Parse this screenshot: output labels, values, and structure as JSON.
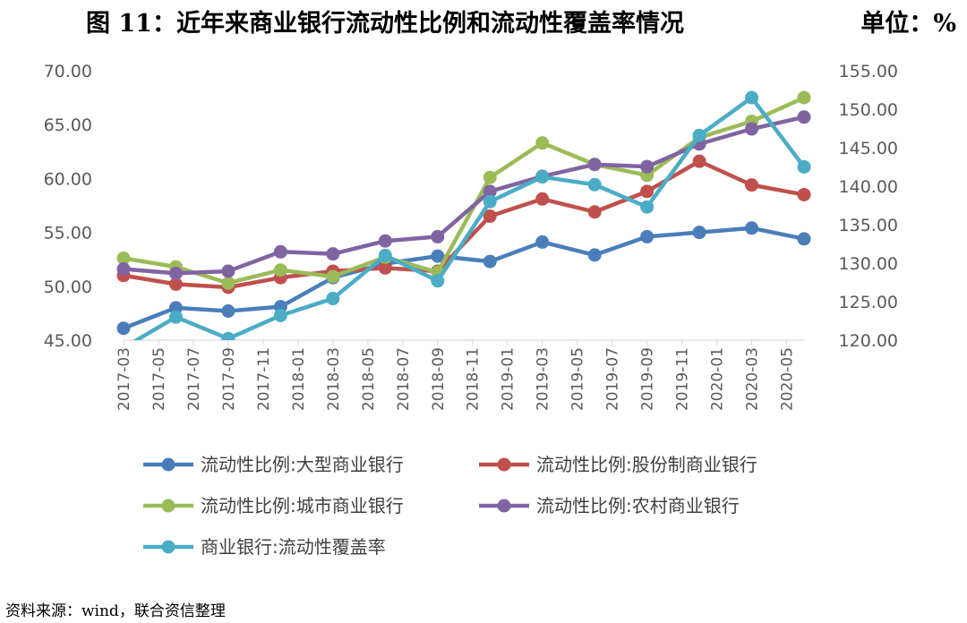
{
  "title": "图 11：近年来商业银行流动性比例和流动性覆盖率情况",
  "unit_label": "单位：%",
  "source": "资料来源：wind，联合资信整理",
  "colors": {
    "series": [
      "#4A7EBB",
      "#C0504D",
      "#9BBB59",
      "#8064A2",
      "#4BACC6"
    ],
    "axis": "#D9D9D9",
    "tick_text": "#595959"
  },
  "chart_data": {
    "type": "line",
    "title": "图 11：近年来商业银行流动性比例和流动性覆盖率情况",
    "x": [
      "2017-03",
      "2017-06",
      "2017-09",
      "2017-12",
      "2018-03",
      "2018-06",
      "2018-09",
      "2018-12",
      "2019-03",
      "2019-06",
      "2019-09",
      "2019-12",
      "2020-03",
      "2020-06"
    ],
    "x_tick_labels": [
      "2017-03",
      "2017-05",
      "2017-07",
      "2017-09",
      "2017-11",
      "2018-01",
      "2018-03",
      "2018-05",
      "2018-07",
      "2018-09",
      "2018-11",
      "2019-01",
      "2019-03",
      "2019-05",
      "2019-07",
      "2019-09",
      "2019-11",
      "2020-01",
      "2020-03",
      "2020-05"
    ],
    "x_tick_range": [
      "2017-03",
      "2020-06"
    ],
    "y_left": {
      "ylim": [
        45,
        70
      ],
      "ticks": [
        "45.00",
        "50.00",
        "55.00",
        "60.00",
        "65.00",
        "70.00"
      ]
    },
    "y_right": {
      "ylim": [
        120,
        155
      ],
      "ticks": [
        "120.00",
        "125.00",
        "130.00",
        "135.00",
        "140.00",
        "145.00",
        "150.00",
        "155.00"
      ]
    },
    "grid": false,
    "legend_position": "bottom",
    "series": [
      {
        "name": "流动性比例:大型商业银行",
        "axis": "left",
        "values": [
          46.1,
          48.0,
          47.7,
          48.1,
          50.8,
          52.1,
          52.8,
          52.3,
          54.1,
          52.9,
          54.6,
          55.0,
          55.4,
          54.4
        ]
      },
      {
        "name": "流动性比例:股份制商业银行",
        "axis": "left",
        "values": [
          51.0,
          50.2,
          49.9,
          50.8,
          51.4,
          51.7,
          51.4,
          56.5,
          58.1,
          56.9,
          58.8,
          61.6,
          59.4,
          58.5
        ]
      },
      {
        "name": "流动性比例:城市商业银行",
        "axis": "left",
        "values": [
          52.6,
          51.8,
          50.3,
          51.5,
          50.9,
          52.7,
          51.3,
          60.1,
          63.3,
          61.3,
          60.3,
          63.8,
          65.3,
          67.5
        ]
      },
      {
        "name": "流动性比例:农村商业银行",
        "axis": "left",
        "values": [
          51.6,
          51.2,
          51.4,
          53.2,
          53.0,
          54.2,
          54.6,
          58.8,
          60.2,
          61.3,
          61.1,
          63.2,
          64.6,
          65.7
        ]
      },
      {
        "name": "商业银行:流动性覆盖率",
        "axis": "right",
        "values": [
          119.0,
          123.0,
          120.2,
          123.2,
          125.4,
          131.0,
          127.7,
          138.0,
          141.2,
          140.2,
          137.3,
          146.6,
          151.5,
          142.5
        ]
      }
    ]
  }
}
